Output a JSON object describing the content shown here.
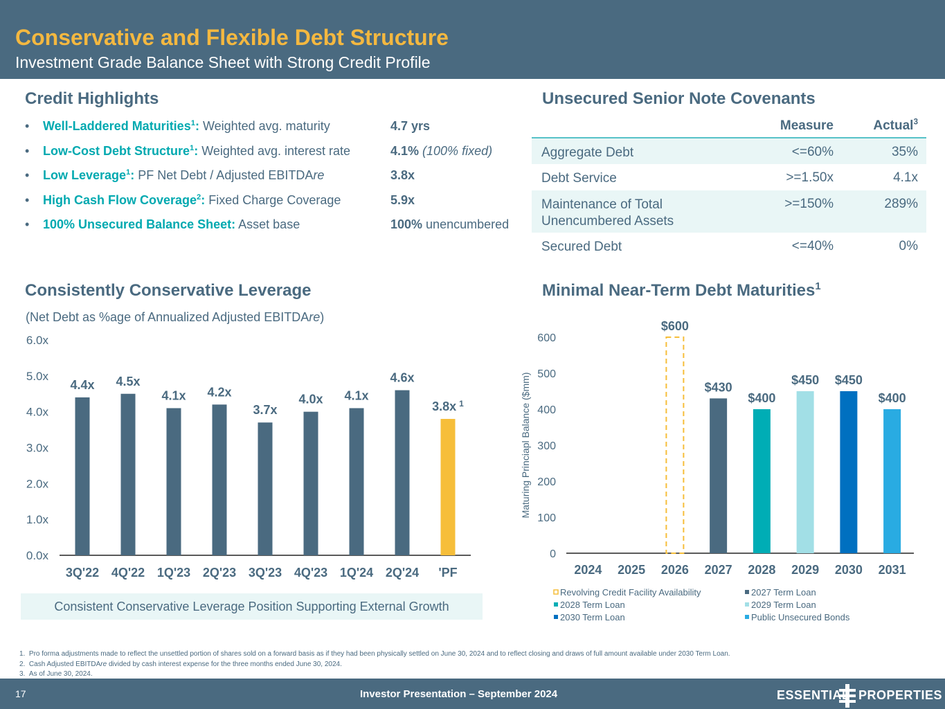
{
  "header": {
    "title": "Conservative and Flexible Debt Structure",
    "subtitle": "Investment Grade Balance Sheet with Strong Credit Profile"
  },
  "credit_highlights": {
    "title": "Credit Highlights",
    "items": [
      {
        "bullet": "•",
        "bold": "Well-Laddered Maturities",
        "sup": "1",
        "colon": ":",
        "desc": " Weighted avg. maturity",
        "value_bold": "4.7 yrs",
        "value_rest": ""
      },
      {
        "bullet": "•",
        "bold": "Low-Cost Debt Structure",
        "sup": "1",
        "colon": ":",
        "desc": " Weighted avg. interest rate",
        "value_bold": "4.1%",
        "value_rest": " (100% fixed)"
      },
      {
        "bullet": "•",
        "bold": "Low Leverage",
        "sup": "1",
        "colon": ":",
        "desc": " PF Net Debt / Adjusted EBITDA",
        "desc_italic": "re",
        "value_bold": "3.8x",
        "value_rest": ""
      },
      {
        "bullet": "•",
        "bold": "High Cash Flow Coverage",
        "sup": "2",
        "colon": ":",
        "desc": " Fixed Charge Coverage",
        "value_bold": "5.9x",
        "value_rest": ""
      },
      {
        "bullet": "•",
        "bold": "100% Unsecured Balance Sheet",
        "sup": "",
        "colon": ":",
        "desc": " Asset base",
        "value_bold": "100%",
        "value_rest": " unencumbered"
      }
    ]
  },
  "covenants": {
    "title": "Unsecured Senior Note Covenants",
    "col_measure": "Measure",
    "col_actual": "Actual",
    "col_actual_sup": "3",
    "rows": [
      {
        "name": "Aggregate Debt",
        "name2": "",
        "measure": "<=60%",
        "actual": "35%"
      },
      {
        "name": "Debt Service",
        "name2": "",
        "measure": ">=1.50x",
        "actual": "4.1x"
      },
      {
        "name": "Maintenance of Total",
        "name2": "Unencumbered Assets",
        "measure": ">=150%",
        "actual": "289%"
      },
      {
        "name": "Secured Debt",
        "name2": "",
        "measure": "<=40%",
        "actual": "0%"
      }
    ]
  },
  "leverage": {
    "title": "Consistently Conservative Leverage",
    "subtitle_pre": "(Net Debt as %age of Annualized Adjusted EBITDA",
    "subtitle_italic": "re",
    "subtitle_post": ")",
    "callout": "Consistent Conservative Leverage Position Supporting External Growth"
  },
  "maturities": {
    "title": "Minimal Near-Term Debt Maturities",
    "title_sup": "1"
  },
  "chart_data": [
    {
      "type": "bar",
      "title": "Consistently Conservative Leverage",
      "categories": [
        "3Q'22",
        "4Q'22",
        "1Q'23",
        "2Q'23",
        "3Q'23",
        "4Q'23",
        "1Q'24",
        "2Q'24",
        "'PF"
      ],
      "values": [
        4.4,
        4.5,
        4.1,
        4.2,
        3.7,
        4.0,
        4.1,
        4.6,
        3.8
      ],
      "labels": [
        "4.4x",
        "4.5x",
        "4.1x",
        "4.2x",
        "3.7x",
        "4.0x",
        "4.1x",
        "4.6x",
        "3.8x"
      ],
      "label_sups": [
        "",
        "",
        "",
        "",
        "",
        "",
        "",
        "",
        "1"
      ],
      "colors": [
        "#4a6a80",
        "#4a6a80",
        "#4a6a80",
        "#4a6a80",
        "#4a6a80",
        "#4a6a80",
        "#4a6a80",
        "#4a6a80",
        "#f6be3a"
      ],
      "ylim": [
        0,
        6
      ],
      "yticks": [
        0,
        1,
        2,
        3,
        4,
        5,
        6
      ],
      "ytick_labels": [
        "0.0x",
        "1.0x",
        "2.0x",
        "3.0x",
        "4.0x",
        "5.0x",
        "6.0x"
      ],
      "xlabel": "",
      "ylabel": ""
    },
    {
      "type": "bar",
      "title": "Minimal Near-Term Debt Maturities",
      "categories": [
        "2024",
        "2025",
        "2026",
        "2027",
        "2028",
        "2029",
        "2030",
        "2031"
      ],
      "values": [
        0,
        0,
        600,
        430,
        400,
        450,
        450,
        400
      ],
      "labels": [
        "",
        "",
        "$600",
        "$430",
        "$400",
        "$450",
        "$450",
        "$400"
      ],
      "series_index": [
        -1,
        -1,
        0,
        1,
        2,
        3,
        4,
        5
      ],
      "ylim": [
        0,
        600
      ],
      "yticks": [
        0,
        100,
        200,
        300,
        400,
        500,
        600
      ],
      "ytick_labels": [
        "0",
        "100",
        "200",
        "300",
        "400",
        "500",
        "600"
      ],
      "ylabel": "Maturing Princiapl Balance ($mm)",
      "xlabel": "",
      "series": [
        {
          "name": "Revolving Credit Facility Availability",
          "color": "#f6be3a",
          "style": "dashed-outline"
        },
        {
          "name": "2027 Term Loan",
          "color": "#4a6a80",
          "style": "solid"
        },
        {
          "name": "2028 Term Loan",
          "color": "#00adb5",
          "style": "solid"
        },
        {
          "name": "2029 Term Loan",
          "color": "#a2dfe6",
          "style": "solid"
        },
        {
          "name": "2030 Term Loan",
          "color": "#0070c0",
          "style": "solid"
        },
        {
          "name": "Public Unsecured Bonds",
          "color": "#29abe2",
          "style": "solid"
        }
      ],
      "legend_position": "bottom"
    }
  ],
  "footnotes": [
    {
      "num": "1.",
      "text": "Pro forma adjustments made to reflect the unsettled portion of shares sold on a forward basis as if they had been physically settled on June 30, 2024 and to reflect closing and draws of full amount available under 2030 Term Loan."
    },
    {
      "num": "2.",
      "text_pre": "Cash Adjusted EBITDA",
      "text_italic": "re",
      "text": " divided by cash interest expense for the three months ended June 30, 2024."
    },
    {
      "num": "3.",
      "text": "As of June 30, 2024."
    }
  ],
  "footer": {
    "page_number": "17",
    "presentation": "Investor Presentation – September 2024",
    "logo_word1": "ESSENTIAL",
    "logo_word2": "PROPERTIES"
  }
}
